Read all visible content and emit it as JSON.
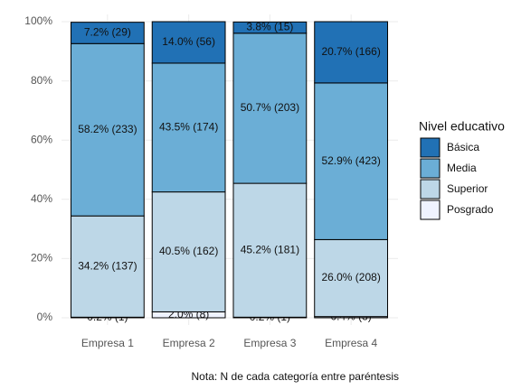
{
  "chart_data": {
    "type": "stacked_bar",
    "categories": [
      "Empresa 1",
      "Empresa 2",
      "Empresa 3",
      "Empresa 4"
    ],
    "series": [
      {
        "name": "Básica",
        "color": "#2171b5",
        "values": [
          7.2,
          14.0,
          3.8,
          20.7
        ],
        "value_labels": [
          "7.2% (29)",
          "14.0% (56)",
          "3.8% (15)",
          "20.7% (166)"
        ]
      },
      {
        "name": "Media",
        "color": "#6baed6",
        "values": [
          58.2,
          43.5,
          50.7,
          52.9
        ],
        "value_labels": [
          "58.2% (233)",
          "43.5% (174)",
          "50.7% (203)",
          "52.9% (423)"
        ]
      },
      {
        "name": "Superior",
        "color": "#bdd7e7",
        "values": [
          34.2,
          40.5,
          45.2,
          26.0
        ],
        "value_labels": [
          "34.2% (137)",
          "40.5% (162)",
          "45.2% (181)",
          "26.0% (208)"
        ]
      },
      {
        "name": "Posgrado",
        "color": "#eff3ff",
        "values": [
          0.2,
          2.0,
          0.2,
          0.4
        ],
        "value_labels": [
          "0.2% (1)",
          "2.0% (8)",
          "0.2% (1)",
          "0.4% (3)"
        ]
      }
    ],
    "ylim": [
      0,
      100
    ],
    "yticks": [
      {
        "value": 0,
        "label": "0%"
      },
      {
        "value": 20,
        "label": "20%"
      },
      {
        "value": 40,
        "label": "40%"
      },
      {
        "value": 60,
        "label": "60%"
      },
      {
        "value": 80,
        "label": "80%"
      },
      {
        "value": 100,
        "label": "100%"
      }
    ],
    "grid": true,
    "legend_title": "Nivel educativo",
    "caption": "Nota: N de cada categoría entre paréntesis"
  }
}
